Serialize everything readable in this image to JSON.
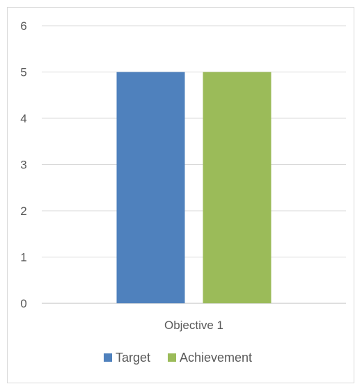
{
  "chart_data": {
    "type": "bar",
    "categories": [
      "Objective 1"
    ],
    "series": [
      {
        "name": "Target",
        "values": [
          5
        ],
        "color": "#4f81bd"
      },
      {
        "name": "Achievement",
        "values": [
          5
        ],
        "color": "#9bbb59"
      }
    ],
    "title": "",
    "xlabel": "",
    "ylabel": "",
    "ylim": [
      0,
      6
    ],
    "yticks": [
      "0",
      "1",
      "2",
      "3",
      "4",
      "5",
      "6"
    ],
    "grid": true,
    "legend_position": "bottom",
    "gridline_color": "#d9d9d9",
    "axis_color": "#bfbfbf"
  }
}
